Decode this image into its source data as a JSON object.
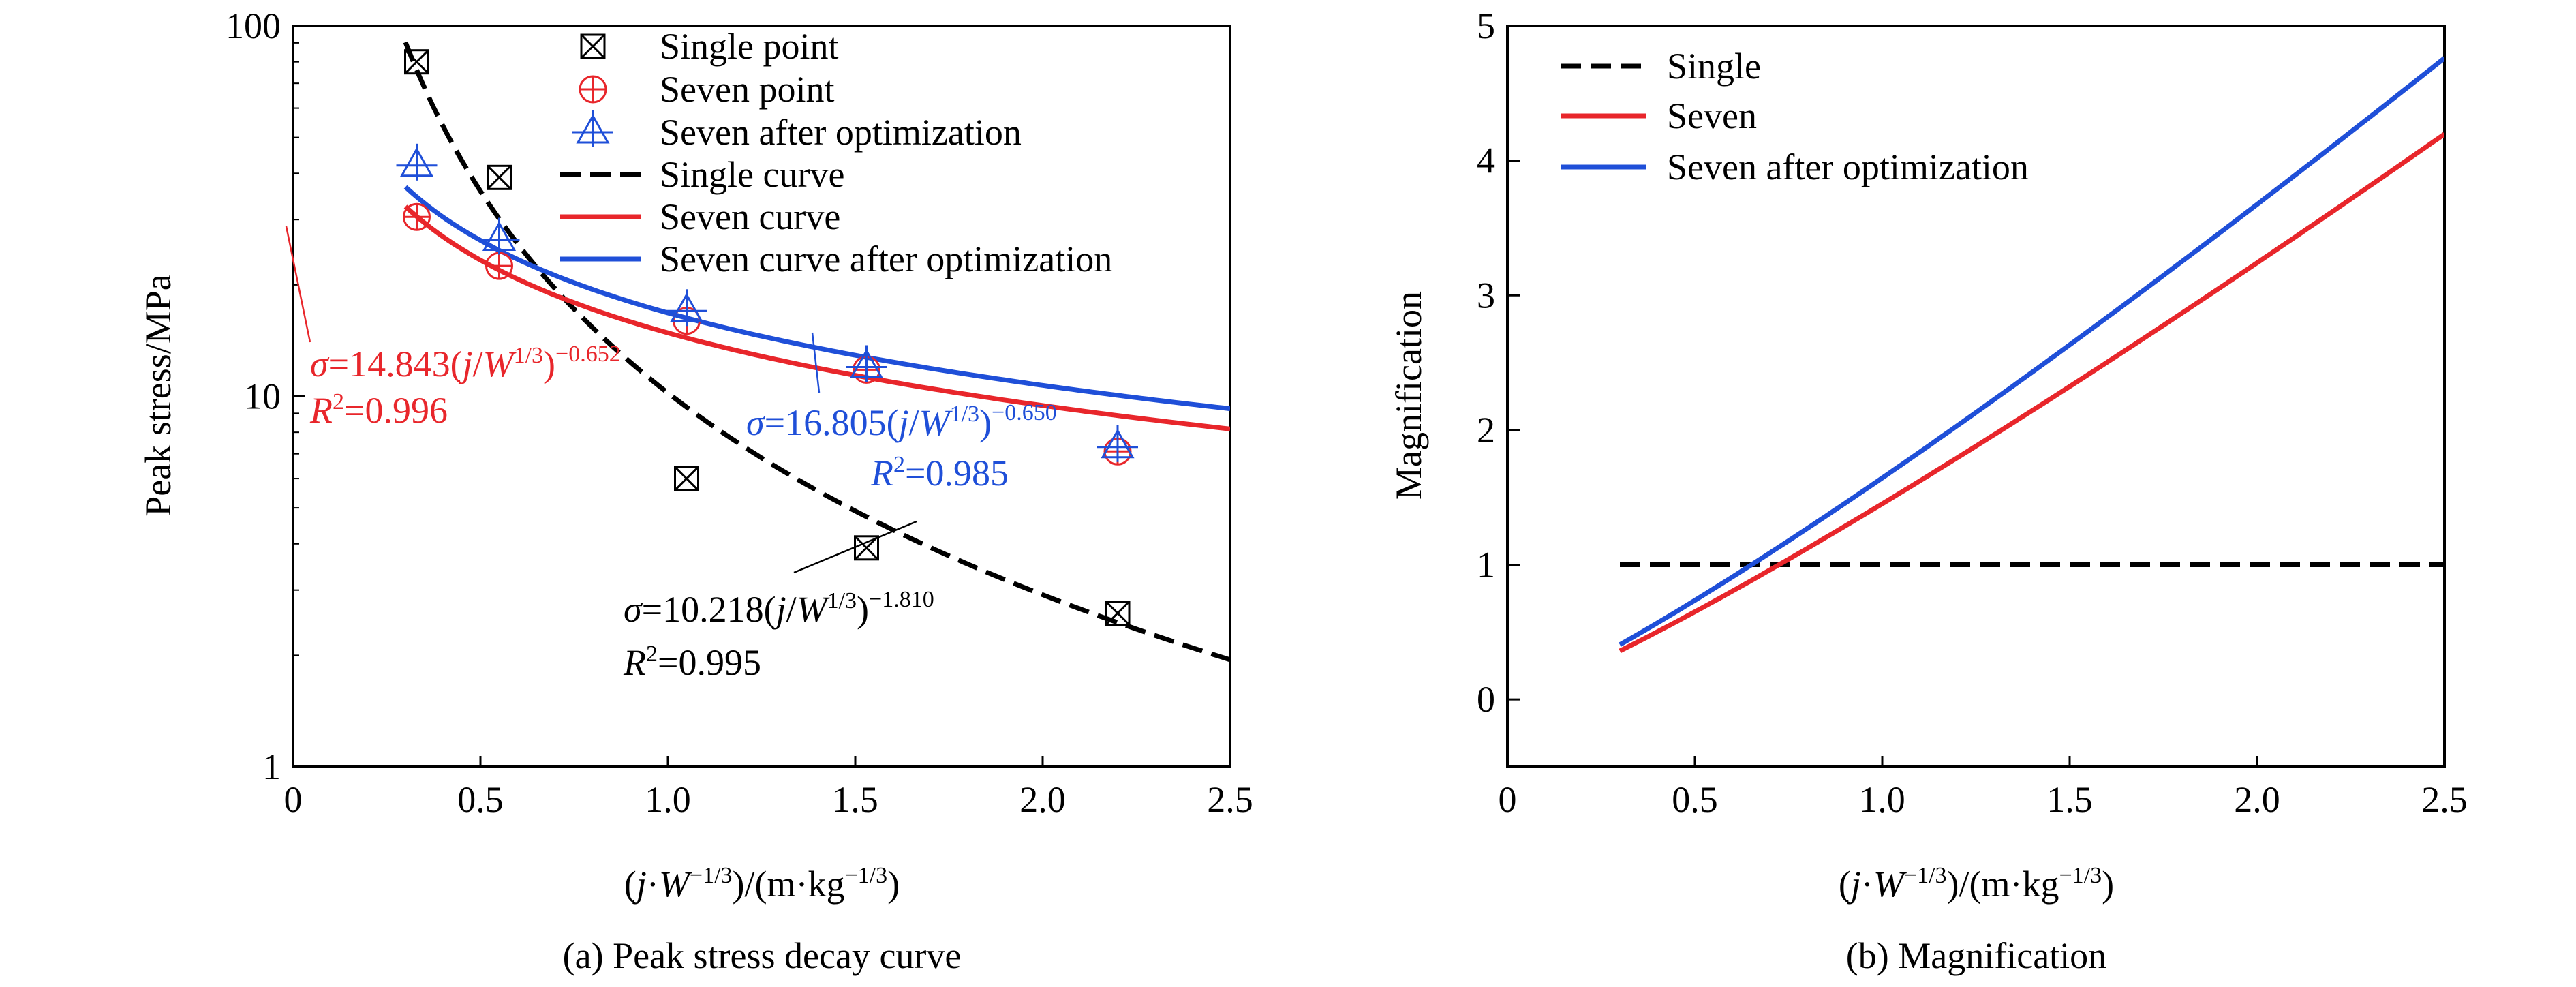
{
  "chart_data": [
    {
      "type": "scatter",
      "panel_caption": "(a) Peak stress decay curve",
      "ylabel": "Peak stress/MPa",
      "xlabel": "(j·W⁻¹ᐟ³)/(m·kg⁻¹ᐟ³)",
      "xlim": [
        0,
        2.5
      ],
      "ylim": [
        1,
        100
      ],
      "yscale": "log",
      "x_ticks": [
        0,
        0.5,
        1.0,
        1.5,
        2.0,
        2.5
      ],
      "x_tick_labels": [
        "0",
        "0.5",
        "1.0",
        "1.5",
        "2.0",
        "2.5"
      ],
      "y_ticks": [
        1,
        10,
        100
      ],
      "y_tick_labels": [
        "1",
        "10",
        "100"
      ],
      "grid": false,
      "legend_position": "top-center",
      "colors": {
        "single": "#000000",
        "seven": "#e8262b",
        "optimized": "#1f4fd8"
      },
      "series": [
        {
          "name": "Single point",
          "kind": "points",
          "marker": "box-x",
          "color": "#000000",
          "x": [
            0.33,
            0.55,
            1.05,
            1.53,
            2.2
          ],
          "y": [
            80,
            39,
            6,
            3.9,
            2.6
          ]
        },
        {
          "name": "Seven point",
          "kind": "points",
          "marker": "circle-plus",
          "color": "#e8262b",
          "x": [
            0.33,
            0.55,
            1.05,
            1.53,
            2.2
          ],
          "y": [
            30.5,
            22.5,
            16,
            11.8,
            7.1
          ]
        },
        {
          "name": "Seven after optimization",
          "kind": "points",
          "marker": "triangle-plus",
          "color": "#1f4fd8",
          "x": [
            0.33,
            0.55,
            1.05,
            1.53,
            2.2
          ],
          "y": [
            42,
            26.5,
            17,
            12,
            7.3
          ]
        },
        {
          "name": "Single curve",
          "kind": "curve",
          "dash": true,
          "color": "#000000",
          "coef": 10.218,
          "exp": -1.81,
          "x_range": [
            0.3,
            2.5
          ]
        },
        {
          "name": "Seven curve",
          "kind": "curve",
          "dash": false,
          "color": "#e8262b",
          "coef": 14.843,
          "exp": -0.652,
          "x_range": [
            0.3,
            2.5
          ]
        },
        {
          "name": "Seven curve after optimization",
          "kind": "curve",
          "dash": false,
          "color": "#1f4fd8",
          "coef": 16.805,
          "exp": -0.65,
          "x_range": [
            0.3,
            2.5
          ]
        }
      ],
      "annotations": [
        {
          "color": "#e8262b",
          "sigma": "σ",
          "eq": "=14.843(",
          "j": "j",
          "slash": "/",
          "W": "W",
          "wexp": "1/3",
          "close": ")",
          "exp": "−0.652",
          "R": "R",
          "r2": "2",
          "r2val": "=0.996"
        },
        {
          "color": "#1f4fd8",
          "sigma": "σ",
          "eq": "=16.805(",
          "j": "j",
          "slash": "/",
          "W": "W",
          "wexp": "1/3",
          "close": ")",
          "exp": "−0.650",
          "R": "R",
          "r2": "2",
          "r2val": "=0.985"
        },
        {
          "color": "#000000",
          "sigma": "σ",
          "eq": "=10.218(",
          "j": "j",
          "slash": "/",
          "W": "W",
          "wexp": "1/3",
          "close": ")",
          "exp": "−1.810",
          "R": "R",
          "r2": "2",
          "r2val": "=0.995"
        }
      ]
    },
    {
      "type": "line",
      "panel_caption": "(b) Magnification",
      "ylabel": "Magnification",
      "xlabel": "(j·W⁻¹ᐟ³)/(m·kg⁻¹ᐟ³)",
      "xlim": [
        0,
        2.5
      ],
      "ylim": [
        -0.5,
        5
      ],
      "x_ticks": [
        0,
        0.5,
        1.0,
        1.5,
        2.0,
        2.5
      ],
      "x_tick_labels": [
        "0",
        "0.5",
        "1.0",
        "1.5",
        "2.0",
        "2.5"
      ],
      "y_ticks": [
        0,
        1,
        2,
        3,
        4,
        5
      ],
      "y_tick_labels": [
        "0",
        "1",
        "2",
        "3",
        "4",
        "5"
      ],
      "grid": false,
      "legend_position": "top-left",
      "series": [
        {
          "name": "Single",
          "dash": true,
          "color": "#000000",
          "coef": 1,
          "exp": 0,
          "x_range": [
            0.3,
            2.5
          ]
        },
        {
          "name": "Seven",
          "dash": false,
          "color": "#e8262b",
          "coef": 1.4526,
          "exp": 1.158,
          "x_range": [
            0.3,
            2.5
          ]
        },
        {
          "name": "Seven after optimization",
          "dash": false,
          "color": "#1f4fd8",
          "coef": 1.6446,
          "exp": 1.16,
          "x_range": [
            0.3,
            2.5
          ]
        }
      ]
    }
  ],
  "axis_label_parts": {
    "open": "(",
    "j": "j",
    "dot": "·",
    "W": "W",
    "wexp": "−1/3",
    "mid": ")/(m·kg",
    "kgexp": "−1/3",
    "close": ")"
  }
}
